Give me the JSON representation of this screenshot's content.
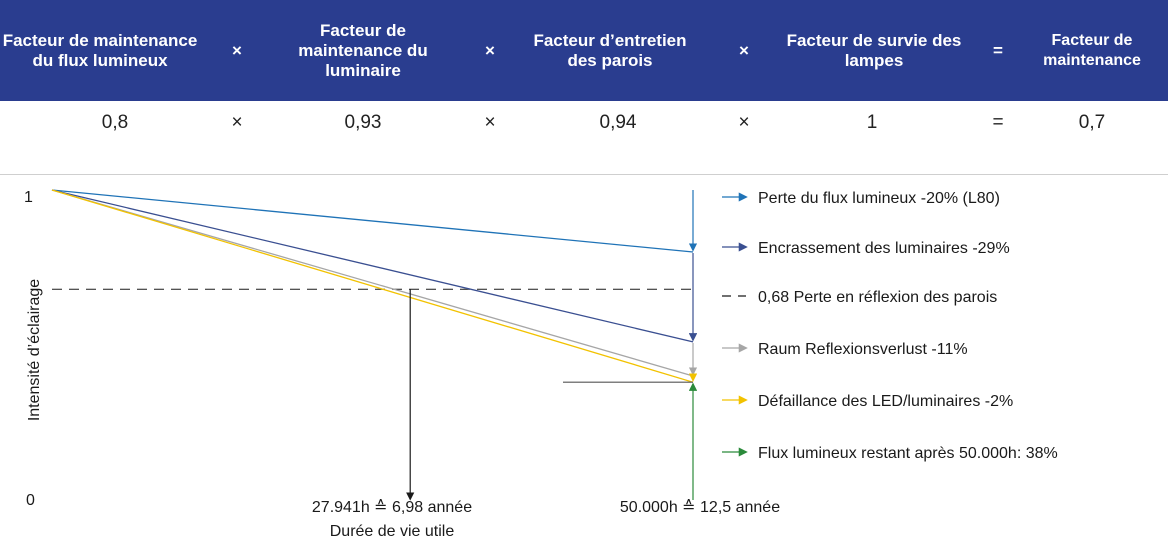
{
  "table": {
    "headers": [
      "Facteur de maintenance du flux lumineux",
      "×",
      "Facteur de maintenance du luminaire",
      "×",
      "Facteur d’entretien des parois",
      "×",
      "Facteur de survie des lampes",
      "=",
      "Facteur de maintenance"
    ],
    "values": [
      "0,8",
      "×",
      "0,93",
      "×",
      "0,94",
      "×",
      "1",
      "=",
      "0,7"
    ],
    "header_bg": "#2a3d8f"
  },
  "chart_data": {
    "type": "line",
    "ylabel": "Intensité d’éclairage",
    "yticks": [
      "1",
      "0"
    ],
    "ylim": [
      0,
      1
    ],
    "x_annotations": [
      {
        "line1": "27.941h ≙ 6,98 année",
        "line2": "Durée de vie utile",
        "x_hours": 27941
      },
      {
        "line1": "50.000h ≙ 12,5 année",
        "line2": "",
        "x_hours": 50000
      }
    ],
    "threshold": {
      "y": 0.68,
      "label": "0,68 Perte en réflexion des parois",
      "color": "#1a1a1a"
    },
    "series": [
      {
        "name": "Perte du flux lumineux -20% (L80)",
        "color": "#1f73b7",
        "x": [
          0,
          50000
        ],
        "y": [
          1.0,
          0.8
        ]
      },
      {
        "name": "Encrassement des luminaires -29%",
        "color": "#3a4f91",
        "x": [
          0,
          50000
        ],
        "y": [
          1.0,
          0.51
        ]
      },
      {
        "name": "Raum Reflexionsverlust -11%",
        "color": "#a6a6a6",
        "x": [
          0,
          50000
        ],
        "y": [
          1.0,
          0.4
        ]
      },
      {
        "name": "Défaillance des LED/luminaires -2%",
        "color": "#f2c200",
        "x": [
          0,
          50000
        ],
        "y": [
          1.0,
          0.38
        ]
      }
    ],
    "legend": [
      {
        "label": "Perte du flux lumineux -20% (L80)",
        "color": "#1f73b7",
        "style": "arrow"
      },
      {
        "label": "Encrassement des luminaires -29%",
        "color": "#3a4f91",
        "style": "arrow"
      },
      {
        "label": "0,68 Perte en réflexion des parois",
        "color": "#1a1a1a",
        "style": "dashed"
      },
      {
        "label": "Raum Reflexionsverlust -11%",
        "color": "#a6a6a6",
        "style": "arrow"
      },
      {
        "label": "Défaillance des LED/luminaires -2%",
        "color": "#f2c200",
        "style": "arrow"
      },
      {
        "label": "Flux lumineux restant après 50.000h: 38%",
        "color": "#2a8a3a",
        "style": "arrow"
      }
    ],
    "remaining": {
      "value": 0.38,
      "color": "#2a8a3a"
    },
    "legend_position": "right"
  }
}
